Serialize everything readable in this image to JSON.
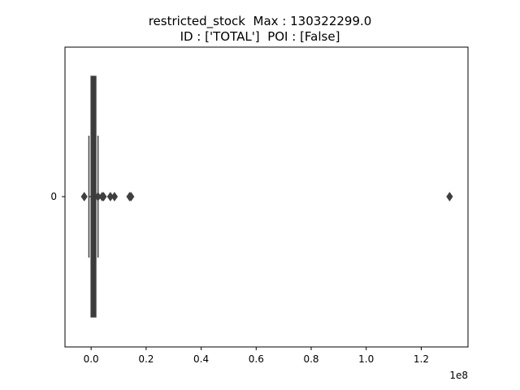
{
  "chart_data": {
    "type": "box",
    "title_lines": [
      "restricted_stock  Max : 130322299.0",
      "ID : ['TOTAL']  POI : [False]"
    ],
    "ytick_labels": [
      "0"
    ],
    "xticks": [
      0.0,
      0.2,
      0.4,
      0.6,
      0.8,
      1.0,
      1.2
    ],
    "xtick_labels": [
      "0.0",
      "0.2",
      "0.4",
      "0.6",
      "0.8",
      "1.0",
      "1.2"
    ],
    "offset_label": "1e8",
    "xlim": [
      -0.095,
      1.37
    ],
    "box": {
      "q1": 0.0,
      "median": 0.006,
      "q3": 0.017,
      "whisker_low": -0.008,
      "whisker_high": 0.025
    },
    "outliers": [
      -0.025,
      0.025,
      0.04,
      0.045,
      0.07,
      0.085,
      0.14,
      0.145,
      1.30322299
    ],
    "colors": {
      "box_fill": "#3a3a3a",
      "box_edge": "#3f3f3f",
      "outlier": "#3f3f3f"
    }
  }
}
